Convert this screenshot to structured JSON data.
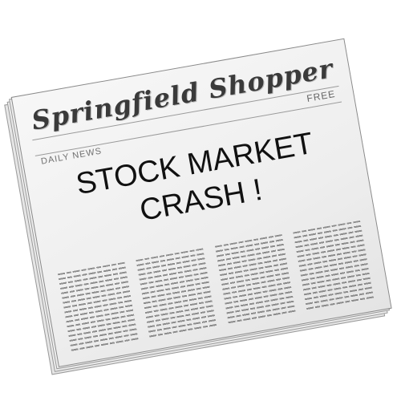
{
  "newspaper": {
    "masthead": "Springfield Shopper",
    "price_label": "FREE",
    "section_label": "DAILY NEWS",
    "headline_line1": "STOCK MARKET",
    "headline_line2": "CRASH !"
  },
  "colors": {
    "paper": "#f1f1f1",
    "ink": "#111111",
    "masthead_ink": "#3a3a3a"
  }
}
